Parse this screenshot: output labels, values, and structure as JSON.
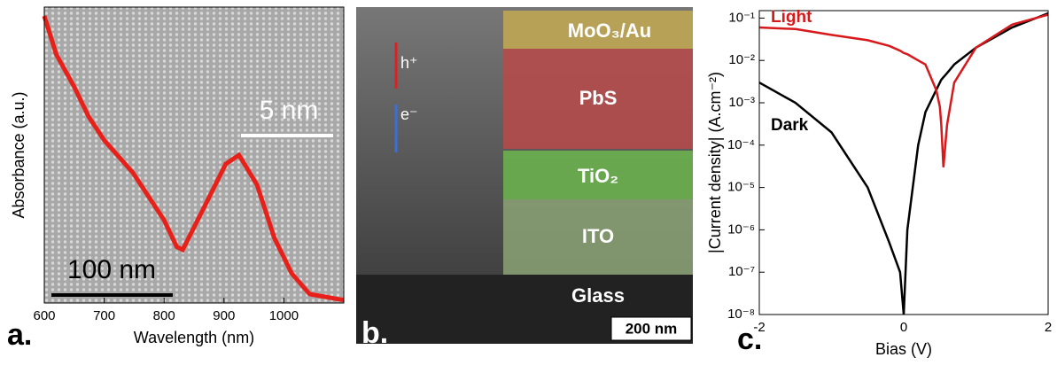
{
  "chart_data": [
    {
      "type": "line",
      "panel_label": "a.",
      "xlabel": "Wavelength (nm)",
      "ylabel": "Absorbance (a.u.)",
      "x": [
        600,
        620,
        650,
        674,
        700,
        748,
        800,
        821,
        831,
        866,
        903,
        925,
        955,
        984,
        1013,
        1043,
        1100
      ],
      "series": [
        {
          "color": "#e8201a",
          "values": [
            0.97,
            0.84,
            0.73,
            0.63,
            0.55,
            0.44,
            0.28,
            0.19,
            0.18,
            0.32,
            0.47,
            0.5,
            0.4,
            0.22,
            0.1,
            0.03,
            0.01
          ]
        }
      ],
      "xlim": [
        600,
        1100
      ],
      "xticks": [
        600,
        700,
        800,
        900,
        1000
      ],
      "ylim": [
        0,
        1
      ],
      "annotations": [
        "100 nm",
        "5 nm"
      ]
    },
    {
      "type": "line",
      "panel_label": "c.",
      "xlabel": "Bias (V)",
      "ylabel": "|Current density| (A.cm⁻²)",
      "log_y": true,
      "x": [
        -2,
        -1.5,
        -1,
        -0.5,
        -0.2,
        -0.05,
        0,
        0.05,
        0.2,
        0.3,
        0.45,
        0.5,
        0.52,
        0.55,
        0.6,
        0.7,
        1,
        1.5,
        2
      ],
      "series": [
        {
          "name": "Dark",
          "color": "#000000",
          "values": [
            0.003,
            0.001,
            0.0002,
            1e-05,
            5e-07,
            1e-07,
            1e-08,
            1e-06,
            0.0001,
            0.0006,
            0.002,
            0.003,
            0.0035,
            0.004,
            0.005,
            0.008,
            0.02,
            0.06,
            0.13
          ]
        },
        {
          "name": "Light",
          "color": "#d7191c",
          "values": [
            0.06,
            0.055,
            0.04,
            0.03,
            0.022,
            0.017,
            0.015,
            0.014,
            0.01,
            0.008,
            0.002,
            0.0008,
            0.0003,
            3e-05,
            0.0003,
            0.003,
            0.02,
            0.07,
            0.12
          ]
        }
      ],
      "xlim": [
        -2,
        2
      ],
      "xticks": [
        -2,
        0,
        2
      ],
      "ylim": [
        1e-08,
        0.15
      ],
      "yticks": [
        {
          "value": 1e-08,
          "label": "10⁻⁸"
        },
        {
          "value": 1e-07,
          "label": "10⁻⁷"
        },
        {
          "value": 1e-06,
          "label": "10⁻⁶"
        },
        {
          "value": 1e-05,
          "label": "10⁻⁵"
        },
        {
          "value": 0.0001,
          "label": "10⁻⁴"
        },
        {
          "value": 0.001,
          "label": "10⁻³"
        },
        {
          "value": 0.01,
          "label": "10⁻²"
        },
        {
          "value": 0.1,
          "label": "10⁻¹"
        }
      ]
    }
  ],
  "micrograph": {
    "panel_label": "b.",
    "layers": [
      "MoO₃/Au",
      "PbS",
      "TiO₂",
      "ITO",
      "Glass"
    ],
    "carriers": [
      "h⁺",
      "e⁻"
    ],
    "scale_bar": "200 nm"
  }
}
